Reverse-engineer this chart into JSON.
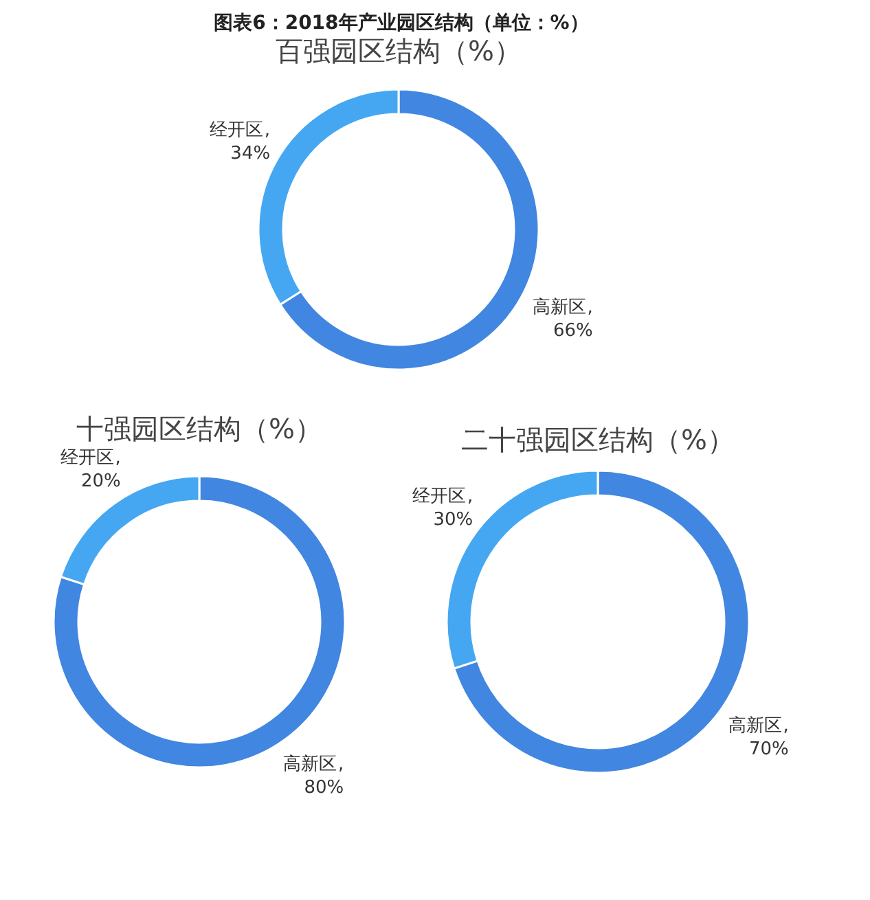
{
  "chart_data": [
    {
      "type": "other",
      "title": "图表6：2018年产业园区结构（单位：%）"
    },
    {
      "type": "donut",
      "title": "百强园区结构（%）",
      "categories": [
        "高新区",
        "经开区"
      ],
      "values": [
        66,
        34
      ],
      "colors": [
        "#4186e0",
        "#45a7f2"
      ],
      "value_labels": [
        ",\n66%",
        ",\n34%"
      ],
      "legend": false
    },
    {
      "type": "donut",
      "title": "十强园区结构（%）",
      "categories": [
        "高新区",
        "经开区"
      ],
      "values": [
        80,
        20
      ],
      "colors": [
        "#4186e0",
        "#45a7f2"
      ],
      "value_labels": [
        ",\n80%",
        ",\n20%"
      ],
      "legend": false
    },
    {
      "type": "donut",
      "title": "二十强园区结构（%）",
      "categories": [
        "高新区",
        "经开区"
      ],
      "values": [
        70,
        30
      ],
      "colors": [
        "#4186e0",
        "#45a7f2"
      ],
      "value_labels": [
        ",\n70%",
        ",\n30%"
      ],
      "legend": false
    }
  ]
}
